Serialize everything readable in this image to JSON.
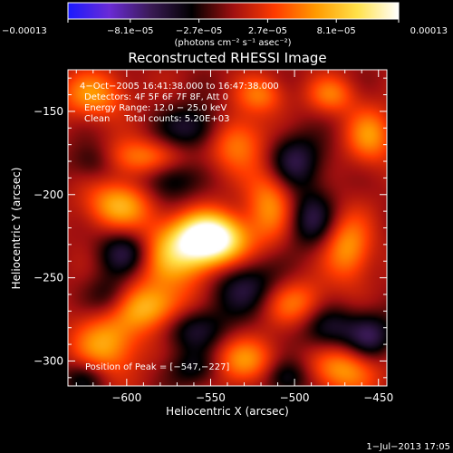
{
  "colors": {
    "background": "#000000",
    "foreground": "#ffffff",
    "colormap": [
      "#1a1aff",
      "#6a2bd6",
      "#3a1a55",
      "#000000",
      "#a01010",
      "#ff3b00",
      "#ff9a00",
      "#ffe14a",
      "#ffffff"
    ]
  },
  "chart_data": {
    "type": "heatmap",
    "title": "Reconstructed RHESSI Image",
    "xlabel": "Heliocentric X (arcsec)",
    "ylabel": "Heliocentric Y (arcsec)",
    "xlim": [
      -635,
      -445
    ],
    "ylim": [
      -315,
      -125
    ],
    "xticks": [
      -600,
      -550,
      -500,
      -450
    ],
    "yticks": [
      -150,
      -200,
      -250,
      -300
    ],
    "xtick_labels": [
      "−600",
      "−550",
      "−500",
      "−450"
    ],
    "ytick_labels": [
      "−150",
      "−200",
      "−250",
      "−300"
    ],
    "colorbar": {
      "range": [
        -0.00013,
        0.00013
      ],
      "ticks": [
        -0.00013,
        -8.1e-05,
        -2.7e-05,
        2.7e-05,
        8.1e-05,
        0.00013
      ],
      "tick_labels": [
        "−0.00013",
        "−8.1e−05",
        "−2.7e−05",
        "2.7e−05",
        "8.1e−05",
        "0.00013"
      ],
      "label": "(photons cm⁻² s⁻¹ asec⁻²)"
    },
    "annotations": [
      "4−Oct−2005 16:41:38.000 to 16:47:38.000",
      "Detectors: 4F 5F 6F 7F 8F, Att 0",
      "Energy Range: 12.0 − 25.0 keV",
      "Clean     Total counts: 5.20E+03"
    ],
    "peak": {
      "label": "Position of Peak = [−547,−227]",
      "x": -547,
      "y": -227
    },
    "blobs": [
      {
        "x": -550,
        "y": -226,
        "sx": 14,
        "sy": 10,
        "a": 1.25
      },
      {
        "x": -570,
        "y": -236,
        "sx": 22,
        "sy": 14,
        "a": 0.75
      },
      {
        "x": -585,
        "y": -268,
        "sx": 16,
        "sy": 10,
        "a": 0.7
      },
      {
        "x": -612,
        "y": -290,
        "sx": 14,
        "sy": 14,
        "a": 0.65
      },
      {
        "x": -605,
        "y": -206,
        "sx": 14,
        "sy": 10,
        "a": 0.65
      },
      {
        "x": -590,
        "y": -178,
        "sx": 18,
        "sy": 8,
        "a": 0.55
      },
      {
        "x": -620,
        "y": -140,
        "sx": 14,
        "sy": 10,
        "a": 0.55
      },
      {
        "x": -535,
        "y": -168,
        "sx": 12,
        "sy": 12,
        "a": 0.55
      },
      {
        "x": -515,
        "y": -205,
        "sx": 10,
        "sy": 16,
        "a": 0.55
      },
      {
        "x": -500,
        "y": -265,
        "sx": 14,
        "sy": 10,
        "a": 0.5
      },
      {
        "x": -468,
        "y": -232,
        "sx": 10,
        "sy": 14,
        "a": 0.6
      },
      {
        "x": -455,
        "y": -165,
        "sx": 10,
        "sy": 12,
        "a": 0.55
      },
      {
        "x": -470,
        "y": -305,
        "sx": 14,
        "sy": 10,
        "a": 0.6
      },
      {
        "x": -530,
        "y": -300,
        "sx": 14,
        "sy": 10,
        "a": 0.55
      },
      {
        "x": -520,
        "y": -140,
        "sx": 10,
        "sy": 8,
        "a": 0.45
      },
      {
        "x": -478,
        "y": -140,
        "sx": 10,
        "sy": 8,
        "a": 0.45
      },
      {
        "x": -620,
        "y": -180,
        "sx": 10,
        "sy": 8,
        "a": -0.35
      },
      {
        "x": -600,
        "y": -235,
        "sx": 12,
        "sy": 10,
        "a": -0.7
      },
      {
        "x": -610,
        "y": -262,
        "sx": 10,
        "sy": 10,
        "a": -0.4
      },
      {
        "x": -560,
        "y": -160,
        "sx": 14,
        "sy": 10,
        "a": -0.5
      },
      {
        "x": -575,
        "y": -190,
        "sx": 12,
        "sy": 10,
        "a": -0.45
      },
      {
        "x": -500,
        "y": -180,
        "sx": 12,
        "sy": 12,
        "a": -0.55
      },
      {
        "x": -490,
        "y": -215,
        "sx": 10,
        "sy": 12,
        "a": -0.5
      },
      {
        "x": -530,
        "y": -255,
        "sx": 16,
        "sy": 12,
        "a": -0.55
      },
      {
        "x": -560,
        "y": -280,
        "sx": 14,
        "sy": 10,
        "a": -0.5
      },
      {
        "x": -480,
        "y": -280,
        "sx": 12,
        "sy": 10,
        "a": -0.45
      },
      {
        "x": -455,
        "y": -285,
        "sx": 10,
        "sy": 10,
        "a": -0.55
      },
      {
        "x": -505,
        "y": -310,
        "sx": 10,
        "sy": 8,
        "a": -0.45
      },
      {
        "x": -560,
        "y": -305,
        "sx": 12,
        "sy": 8,
        "a": -0.35
      },
      {
        "x": -625,
        "y": -310,
        "sx": 10,
        "sy": 8,
        "a": -0.4
      }
    ]
  },
  "footer": {
    "timestamp": "1−Jul−2013 17:05"
  }
}
